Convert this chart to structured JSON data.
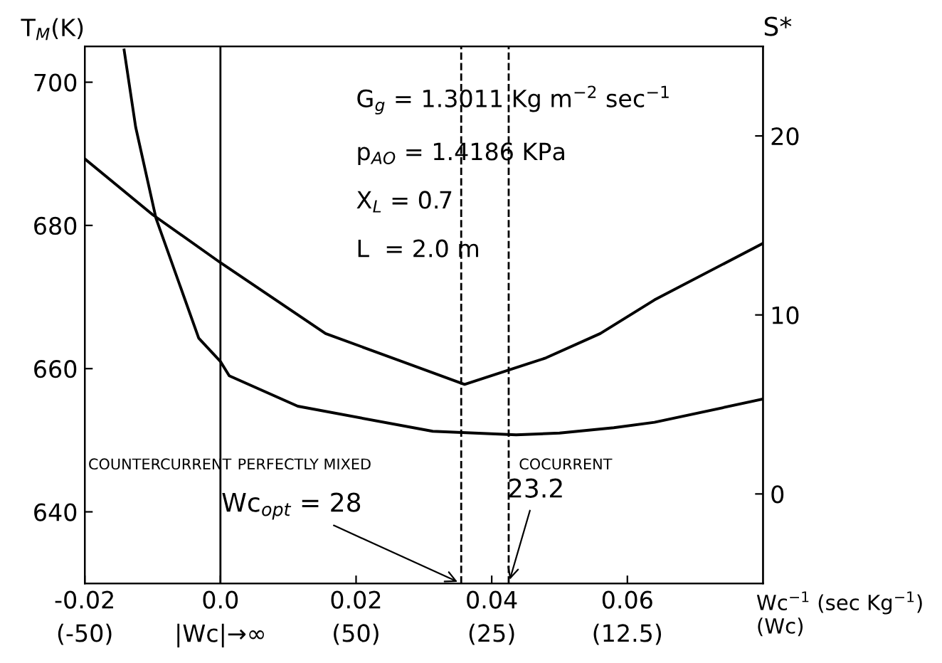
{
  "chart_data": {
    "type": "line",
    "xlabel": "Wc$^{−1}$ (sec Kg$^{−1}$)\n(Wc)",
    "ylabel": "T$_{M}$(K)",
    "y2label": "S*",
    "xlim": [
      -0.02,
      0.08
    ],
    "xticks": [
      -0.02,
      {
        "value": 0,
        "label": "0.0"
      },
      0.02,
      0.04,
      0.06
    ],
    "ylim": [
      630,
      705
    ],
    "yticks": [
      640,
      660,
      680,
      700
    ],
    "y2lim": [
      -5,
      25
    ],
    "y2ticks": [
      0,
      10,
      20
    ],
    "series": [
      {
        "color": "#000000",
        "x": [
          -0.02,
          -0.01,
          0.0,
          0.0155,
          0.036,
          0.048,
          0.056,
          0.064,
          0.08
        ],
        "values": [
          689.3,
          681.5,
          674.8,
          664.9,
          657.8,
          661.5,
          664.9,
          669.6,
          677.5
        ]
      },
      {
        "color": "#000000",
        "axis": "y2",
        "x": [
          -0.0142,
          -0.0125,
          -0.0095,
          -0.0032,
          0.0,
          0.0013,
          0.0114,
          0.0313,
          0.0436,
          0.05,
          0.058,
          0.064,
          0.08
        ],
        "values": [
          24.8,
          20.5,
          15.4,
          8.7,
          7.4,
          6.6,
          4.9,
          3.5,
          3.3,
          3.4,
          3.7,
          4.0,
          5.3
        ]
      }
    ],
    "ref_lines": [
      {
        "axis": "x",
        "value": 0.0,
        "color": "#000000",
        "line_style": "solid"
      },
      {
        "axis": "x",
        "value": 0.0355,
        "color": "#000000",
        "line_style": "dashed"
      },
      {
        "axis": "x",
        "value": 0.0425,
        "color": "#000000",
        "line_style": "dashed"
      }
    ],
    "annotations": [
      "G$_{g}$ = 1.3011 Kg m$^{−2}$ sec$^{−1}$",
      "p$_{AO}$ = 1.4186 KPa",
      "X$_{L}$ = 0.7",
      "L  = 2.0 m",
      "COUNTERCURRENT",
      "PERFECTLY MIXED",
      "COCURRENT",
      "(-50)",
      "|Wc|→∞",
      "(50)",
      "(25)",
      "(12.5)",
      {
        "text": "Wc$_{opt}$ = 28",
        "x": 0.0355,
        "y": 630
      },
      {
        "text": "23.2",
        "x": 0.0425,
        "y": 630
      }
    ],
    "grid": false,
    "legend": false,
    "marker": "none",
    "line_style": "solid"
  }
}
